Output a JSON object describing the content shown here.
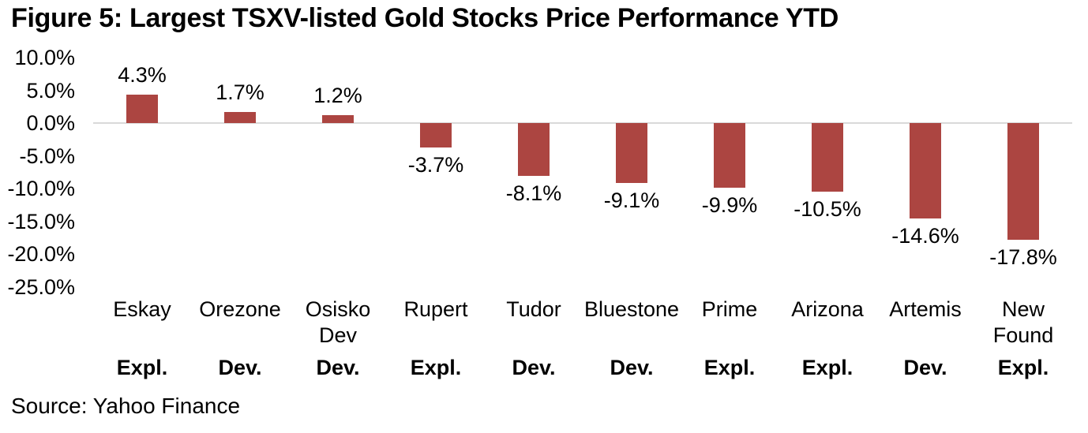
{
  "chart_data": {
    "type": "bar",
    "title": "Figure 5: Largest TSXV-listed Gold Stocks Price Performance YTD",
    "categories": [
      "Eskay",
      "Orezone",
      "Osisko Dev",
      "Rupert",
      "Tudor",
      "Bluestone",
      "Prime",
      "Arizona",
      "Artemis",
      "New Found"
    ],
    "categories_wrapped": [
      [
        "Eskay"
      ],
      [
        "Orezone"
      ],
      [
        "Osisko",
        "Dev"
      ],
      [
        "Rupert"
      ],
      [
        "Tudor"
      ],
      [
        "Bluestone"
      ],
      [
        "Prime"
      ],
      [
        "Arizona"
      ],
      [
        "Artemis"
      ],
      [
        "New",
        "Found"
      ]
    ],
    "category_types": [
      "Expl.",
      "Dev.",
      "Dev.",
      "Expl.",
      "Dev.",
      "Dev.",
      "Expl.",
      "Expl.",
      "Dev.",
      "Expl."
    ],
    "values": [
      4.3,
      1.7,
      1.2,
      -3.7,
      -8.1,
      -9.1,
      -9.9,
      -10.5,
      -14.6,
      -17.8
    ],
    "value_labels": [
      "4.3%",
      "1.7%",
      "1.2%",
      "-3.7%",
      "-8.1%",
      "-9.1%",
      "-9.9%",
      "-10.5%",
      "-14.6%",
      "-17.8%"
    ],
    "xlabel": "",
    "ylabel": "",
    "y_axis": {
      "tick_values": [
        10,
        5,
        0,
        -5,
        -10,
        -15,
        -20,
        -25
      ],
      "tick_labels": [
        "10.0%",
        "5.0%",
        "0.0%",
        "-5.0%",
        "-10.0%",
        "-15.0%",
        "-20.0%",
        "-25.0%"
      ],
      "ylim": [
        -25,
        10
      ]
    },
    "grid": "horizontal zero line only",
    "legend": "none",
    "source_note": "Source: Yahoo Finance",
    "colors": {
      "bar": "#ac4541",
      "zero_line": "#d9d9d9",
      "text": "#000000"
    }
  }
}
